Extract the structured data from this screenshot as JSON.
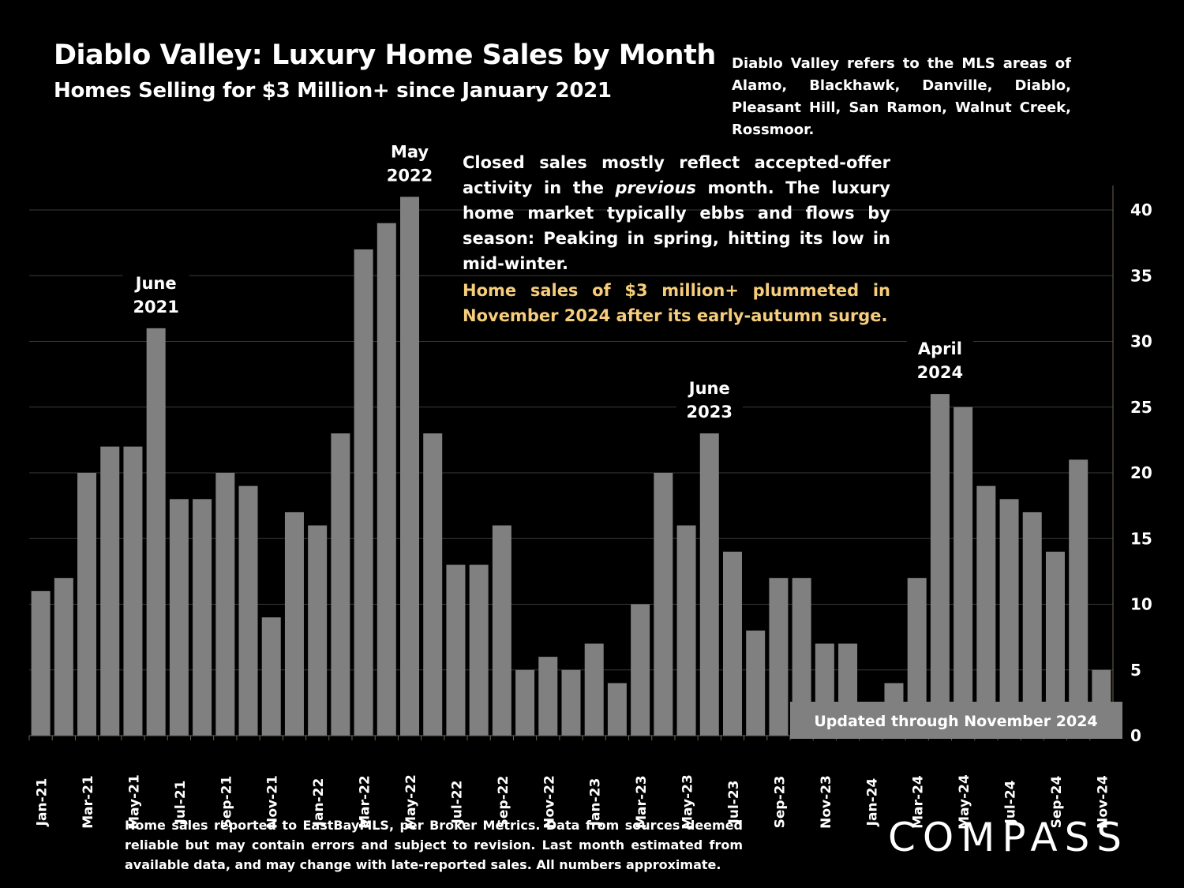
{
  "header": {
    "title": "Diablo Valley:  Luxury Home Sales by Month",
    "subtitle": "Homes Selling for $3 Million+ since January 2021",
    "areas_note": "Diablo Valley refers to the MLS areas of Alamo, Blackhawk, Danville, Diablo, Pleasant Hill, San Ramon, Walnut Creek, Rossmoor."
  },
  "commentary": {
    "before_italic": "Closed sales mostly reflect accepted-offer activity in the ",
    "italic": "previous",
    "after_italic": " month. The luxury home market typically ebbs and flows by season: Peaking in spring, hitting its low in mid-winter.",
    "highlight": "Home sales of $3 million+ plummeted in November 2024 after its early-autumn surge."
  },
  "updated_label": "Updated through November 2024",
  "footer_note": "Home sales reported to EastBayMLS, per Broker Metrics. Data from sources deemed reliable but may contain errors and subject to revision.  Last month estimated from available data, and may change with late-reported sales. All numbers approximate.",
  "brand": "COMPASS",
  "colors": {
    "background": "#000000",
    "bar": "#808080",
    "text": "#ffffff",
    "highlight": "#f6cd7c",
    "gridline": "#3a3a3a"
  },
  "chart_data": {
    "type": "bar",
    "categories": [
      "Jan-21",
      "Feb-21",
      "Mar-21",
      "Apr-21",
      "May-21",
      "Jun-21",
      "Jul-21",
      "Aug-21",
      "Sep-21",
      "Oct-21",
      "Nov-21",
      "Dec-21",
      "Jan-22",
      "Feb-22",
      "Mar-22",
      "Apr-22",
      "May-22",
      "Jun-22",
      "Jul-22",
      "Aug-22",
      "Sep-22",
      "Oct-22",
      "Nov-22",
      "Dec-22",
      "Jan-23",
      "Feb-23",
      "Mar-23",
      "Apr-23",
      "May-23",
      "Jun-23",
      "Jul-23",
      "Aug-23",
      "Sep-23",
      "Oct-23",
      "Nov-23",
      "Dec-23",
      "Jan-24",
      "Feb-24",
      "Mar-24",
      "Apr-24",
      "May-24",
      "Jun-24",
      "Jul-24",
      "Aug-24",
      "Sep-24",
      "Oct-24",
      "Nov-24"
    ],
    "x_tick_labels": [
      "Jan-21",
      "Mar-21",
      "May-21",
      "Jul-21",
      "Sep-21",
      "Nov-21",
      "Jan-22",
      "Mar-22",
      "May-22",
      "Jul-22",
      "Sep-22",
      "Nov-22",
      "Jan-23",
      "Mar-23",
      "May-23",
      "Jul-23",
      "Sep-23",
      "Nov-23",
      "Jan-24",
      "Mar-24",
      "May-24",
      "Jul-24",
      "Sep-24",
      "Nov-24"
    ],
    "values": [
      11,
      12,
      20,
      22,
      22,
      31,
      18,
      18,
      20,
      19,
      9,
      17,
      16,
      23,
      37,
      39,
      41,
      23,
      13,
      13,
      16,
      5,
      6,
      5,
      7,
      4,
      10,
      20,
      16,
      23,
      14,
      8,
      12,
      12,
      7,
      7,
      2,
      4,
      12,
      26,
      25,
      19,
      18,
      17,
      14,
      21,
      5
    ],
    "ylim": [
      0,
      42
    ],
    "yticks": [
      0,
      5,
      10,
      15,
      20,
      25,
      30,
      35,
      40
    ],
    "y_axis_side": "right",
    "grid": true,
    "annotations": [
      {
        "category": "Jun-21",
        "lines": [
          "June",
          "2021"
        ]
      },
      {
        "category": "May-22",
        "lines": [
          "May",
          "2022"
        ]
      },
      {
        "category": "Jun-23",
        "lines": [
          "June",
          "2023"
        ]
      },
      {
        "category": "Apr-24",
        "lines": [
          "April",
          "2024"
        ]
      }
    ]
  }
}
